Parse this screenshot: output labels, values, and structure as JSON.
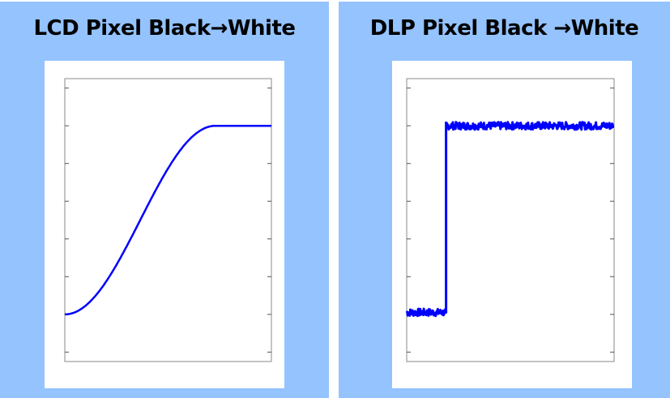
{
  "colors": {
    "background": "#94c3fe",
    "card": "#ffffff",
    "line": "#0000ff",
    "axis": "#888888"
  },
  "chart_data": [
    {
      "type": "line",
      "title": "LCD Pixel Black→White",
      "xlim": [
        0,
        100
      ],
      "ylim": [
        -0.25,
        7.25
      ],
      "yticks": [
        0,
        1,
        2,
        3,
        4,
        5,
        6,
        7
      ],
      "tick_side": "left",
      "grid": false,
      "series": [
        {
          "shape": "smooth-s-curve",
          "x": [
            0,
            10,
            20,
            30,
            40,
            50,
            60,
            73,
            100
          ],
          "y": [
            1,
            1.3,
            2.0,
            2.9,
            3.9,
            4.8,
            5.5,
            6,
            6
          ]
        }
      ]
    },
    {
      "type": "line",
      "title": "DLP Pixel Black →White",
      "xlim": [
        0,
        100
      ],
      "ylim": [
        -0.25,
        7.25
      ],
      "yticks": [
        0,
        1,
        2,
        3,
        4,
        5,
        6,
        7
      ],
      "tick_side": "right",
      "grid": false,
      "series": [
        {
          "shape": "noisy-step",
          "x": [
            0,
            19,
            19,
            100
          ],
          "y": [
            1.05,
            1.05,
            6,
            6
          ],
          "noise_amplitude": 0.1
        }
      ]
    }
  ]
}
